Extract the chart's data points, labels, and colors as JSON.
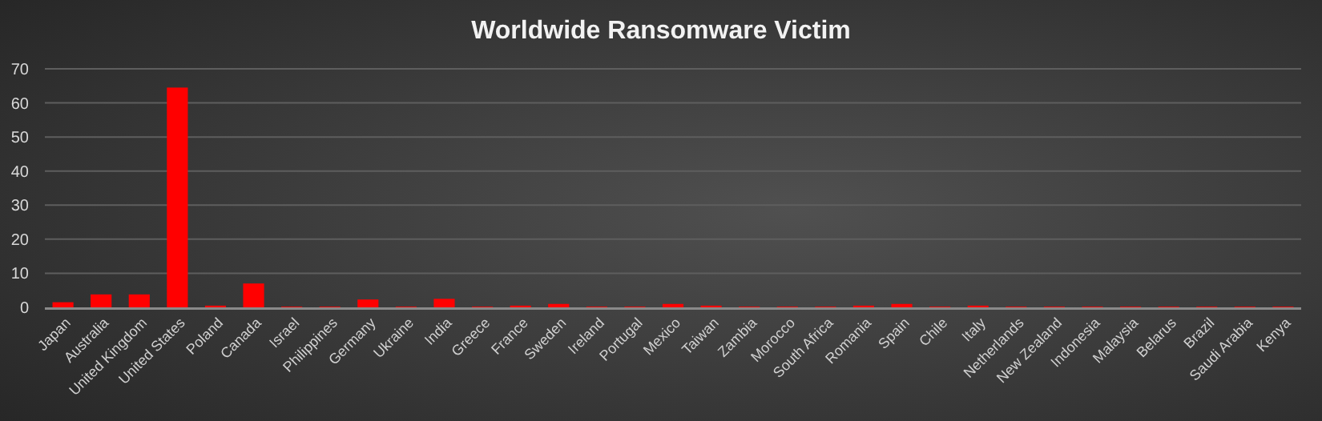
{
  "chart_data": {
    "type": "bar",
    "title": "Worldwide Ransomware Victim",
    "categories": [
      "Japan",
      "Australia",
      "United Kingdom",
      "United States",
      "Poland",
      "Canada",
      "Israel",
      "Philippines",
      "Germany",
      "Ukraine",
      "India",
      "Greece",
      "France",
      "Sweden",
      "Ireland",
      "Portugal",
      "Mexico",
      "Taiwan",
      "Zambia",
      "Morocco",
      "South Africa",
      "Romania",
      "Spain",
      "Chile",
      "Italy",
      "Netherlands",
      "New Zealand",
      "Indonesia",
      "Malaysia",
      "Belarus",
      "Brazil",
      "Saudi Arabia",
      "Kenya"
    ],
    "values": [
      1.5,
      3.8,
      3.8,
      64.5,
      0.5,
      7,
      0.2,
      0.2,
      2.3,
      0.2,
      2.5,
      0.2,
      0.5,
      1,
      0.2,
      0.2,
      1,
      0.5,
      0.2,
      0.2,
      0.2,
      0.5,
      1,
      0.2,
      0.5,
      0.2,
      0.2,
      0.2,
      0.2,
      0.2,
      0.2,
      0.2,
      0.2
    ],
    "color": "#ff0000",
    "ylim": [
      0,
      70
    ],
    "yticks": [
      0,
      10,
      20,
      30,
      40,
      50,
      60,
      70
    ],
    "grid": "y"
  }
}
